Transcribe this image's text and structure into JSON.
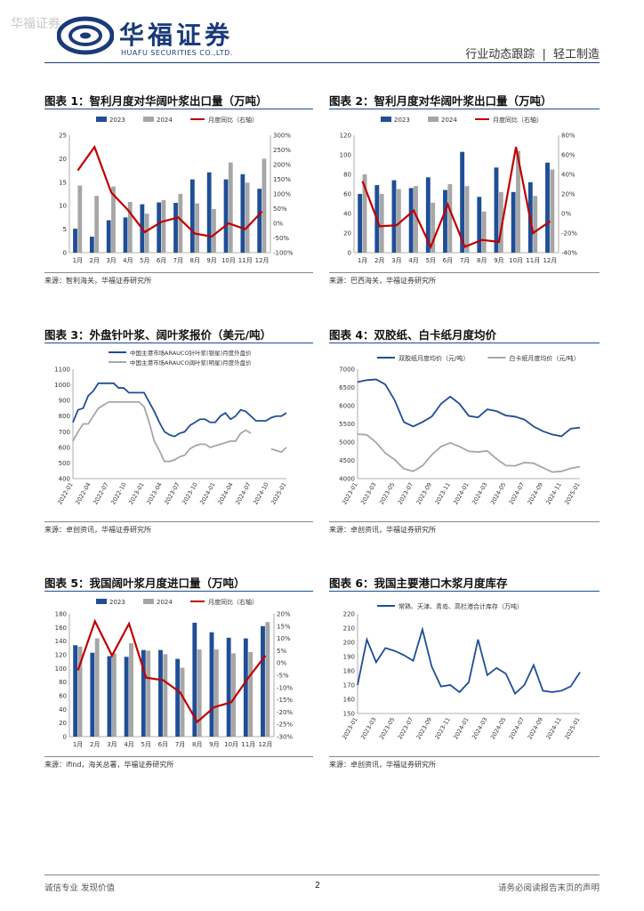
{
  "header": {
    "watermark": "华福证券",
    "logo_cn": "华福证券",
    "logo_en": "HUAFU SECURITIES CO.,LTD.",
    "report_type": "行业动态跟踪",
    "separator": "|",
    "industry": "轻工制造"
  },
  "figures": {
    "f1": {
      "title": "图表 1：智利月度对华阔叶浆出口量（万吨）",
      "source": "来源：智利海关，华福证券研究所"
    },
    "f2": {
      "title": "图表 2：智利月度对华阔叶浆出口量（万吨）",
      "source": "来源：巴西海关，华福证券研究所"
    },
    "f3": {
      "title": "图表 3：外盘针叶浆、阔叶浆报价（美元/吨）",
      "source": "来源：卓创资讯，华福证券研究所"
    },
    "f4": {
      "title": "图表 4：双胶纸、白卡纸月度均价",
      "source": "来源：卓创资讯，华福证券研究所"
    },
    "f5": {
      "title": "图表 5：我国阔叶浆月度进口量（万吨）",
      "source": "来源：ifind，海关总署，华福证券研究所"
    },
    "f6": {
      "title": "图表 6：我国主要港口木浆月度库存",
      "source": "来源：卓创资讯，华福证券研究所"
    }
  },
  "chart_data": [
    {
      "id": "c1",
      "type": "bar+line",
      "categories": [
        "1月",
        "2月",
        "3月",
        "4月",
        "5月",
        "6月",
        "7月",
        "8月",
        "9月",
        "10月",
        "11月",
        "12月"
      ],
      "series": [
        {
          "name": "2023",
          "color": "#1f4e96",
          "values": [
            5.1,
            3.4,
            6.9,
            7.5,
            10.3,
            10.7,
            10.6,
            15.6,
            17.1,
            15.6,
            16.7,
            13.6
          ]
        },
        {
          "name": "2024",
          "color": "#a6a6a6",
          "values": [
            14.3,
            12.1,
            14.1,
            10.8,
            8.3,
            11.2,
            12.5,
            10.5,
            9.3,
            19.2,
            14.9,
            20.0
          ]
        },
        {
          "name": "月度同比（右轴）",
          "color": "#c00000",
          "axis": "right",
          "values": [
            180,
            260,
            105,
            45,
            -30,
            5,
            20,
            -35,
            -45,
            0,
            -20,
            40
          ]
        }
      ],
      "ylim": [
        0,
        25
      ],
      "yticks": [
        0,
        5,
        10,
        15,
        20,
        25
      ],
      "y2lim": [
        -100,
        300
      ],
      "y2ticks": [
        "-100%",
        "-50%",
        "0%",
        "50%",
        "100%",
        "150%",
        "200%",
        "250%",
        "300%"
      ]
    },
    {
      "id": "c2",
      "type": "bar+line",
      "categories": [
        "1月",
        "2月",
        "3月",
        "4月",
        "5月",
        "6月",
        "7月",
        "8月",
        "9月",
        "10月",
        "11月",
        "12月"
      ],
      "series": [
        {
          "name": "2023",
          "color": "#1f4e96",
          "values": [
            60,
            69,
            74,
            66,
            77,
            64,
            103,
            57,
            87,
            62,
            72,
            92
          ]
        },
        {
          "name": "2024",
          "color": "#a6a6a6",
          "values": [
            80,
            60,
            65,
            68,
            51,
            70,
            68,
            42,
            62,
            104,
            58,
            85
          ]
        },
        {
          "name": "月度同比（右轴）",
          "color": "#c00000",
          "axis": "right",
          "values": [
            33,
            -13,
            -12,
            3,
            -34,
            9,
            -34,
            -27,
            -29,
            68,
            -20,
            -8
          ]
        }
      ],
      "ylim": [
        0,
        120
      ],
      "yticks": [
        0,
        20,
        40,
        60,
        80,
        100,
        120
      ],
      "y2lim": [
        -40,
        80
      ],
      "y2ticks": [
        "-40%",
        "-20%",
        "0%",
        "20%",
        "40%",
        "60%",
        "80%"
      ]
    },
    {
      "id": "c3",
      "type": "line",
      "x_labels": [
        "2022-01",
        "2022-04",
        "2022-07",
        "2022-10",
        "2023-01",
        "2023-04",
        "2023-07",
        "2023-10",
        "2024-01",
        "2024-04",
        "2024-07",
        "2024-10",
        "2025-01"
      ],
      "series": [
        {
          "name": "中国主港市场ARAUCO针叶浆(银星)月度外盘价",
          "color": "#1f4e96",
          "values": [
            760,
            840,
            850,
            930,
            960,
            1010,
            1010,
            1010,
            1010,
            980,
            980,
            950,
            950,
            950,
            950,
            890,
            830,
            760,
            700,
            680,
            670,
            690,
            700,
            740,
            760,
            780,
            780,
            760,
            760,
            800,
            820,
            780,
            800,
            840,
            830,
            800,
            770,
            770,
            770,
            790,
            800,
            800,
            820
          ]
        },
        {
          "name": "中国主港市场ARAUCO阔叶浆(明星)月度外盘价",
          "color": "#a6a6a6",
          "values": [
            640,
            700,
            750,
            750,
            800,
            850,
            870,
            890,
            890,
            890,
            890,
            890,
            890,
            890,
            860,
            760,
            640,
            580,
            510,
            510,
            520,
            540,
            550,
            590,
            610,
            620,
            620,
            600,
            610,
            620,
            630,
            640,
            640,
            690,
            710,
            690,
            null,
            null,
            null,
            590,
            580,
            570,
            600
          ]
        }
      ],
      "ylim": [
        400,
        1100
      ],
      "yticks": [
        400,
        500,
        600,
        700,
        800,
        900,
        1000,
        1100
      ]
    },
    {
      "id": "c4",
      "type": "line",
      "x_labels": [
        "2023-01",
        "2023-03",
        "2023-05",
        "2023-07",
        "2023-09",
        "2023-11",
        "2024-01",
        "2024-03",
        "2024-05",
        "2024-07",
        "2024-09",
        "2024-11",
        "2025-01"
      ],
      "series": [
        {
          "name": "双胶纸月度均价（元/吨）",
          "color": "#1f4e96",
          "values": [
            6650,
            6700,
            6720,
            6580,
            6150,
            5550,
            5430,
            5550,
            5700,
            6050,
            6250,
            6050,
            5720,
            5680,
            5900,
            5850,
            5730,
            5700,
            5620,
            5430,
            5300,
            5210,
            5160,
            5370,
            5400
          ]
        },
        {
          "name": "白卡纸月度均价（元/吨）",
          "color": "#a6a6a6",
          "values": [
            5220,
            5200,
            4990,
            4700,
            4520,
            4270,
            4200,
            4350,
            4650,
            4880,
            4980,
            4880,
            4750,
            4730,
            4760,
            4540,
            4360,
            4350,
            4440,
            4420,
            4300,
            4180,
            4200,
            4280,
            4330
          ]
        }
      ],
      "ylim": [
        4000,
        7000
      ],
      "yticks": [
        4000,
        4500,
        5000,
        5500,
        6000,
        6500,
        7000
      ]
    },
    {
      "id": "c5",
      "type": "bar+line",
      "categories": [
        "1月",
        "2月",
        "3月",
        "4月",
        "5月",
        "6月",
        "7月",
        "8月",
        "9月",
        "10月",
        "11月",
        "12月"
      ],
      "series": [
        {
          "name": "2023",
          "color": "#1f4e96",
          "values": [
            134,
            123,
            118,
            117,
            127,
            127,
            114,
            167,
            153,
            145,
            144,
            162
          ]
        },
        {
          "name": "2024",
          "color": "#a6a6a6",
          "values": [
            132,
            144,
            122,
            137,
            126,
            121,
            101,
            128,
            128,
            122,
            124,
            168
          ]
        },
        {
          "name": "月度同比（右轴）",
          "color": "#c00000",
          "axis": "right",
          "values": [
            -3,
            17,
            3,
            16,
            -6,
            -7,
            -12,
            -24,
            -18,
            -16,
            -6,
            3
          ]
        }
      ],
      "ylim": [
        0,
        180
      ],
      "yticks": [
        0,
        20,
        40,
        60,
        80,
        100,
        120,
        140,
        160,
        180
      ],
      "y2lim": [
        -30,
        20
      ],
      "y2ticks": [
        "-30%",
        "-25%",
        "-20%",
        "-15%",
        "-10%",
        "-5%",
        "0%",
        "5%",
        "10%",
        "15%",
        "20%"
      ]
    },
    {
      "id": "c6",
      "type": "line",
      "x_labels": [
        "2023-01",
        "2023-03",
        "2023-05",
        "2023-07",
        "2023-09",
        "2023-11",
        "2024-01",
        "2024-03",
        "2024-05",
        "2024-07",
        "2024-09",
        "2024-11",
        "2025-01"
      ],
      "series": [
        {
          "name": "常熟、天津、青岛、高栏港合计库存（万吨）",
          "color": "#1f4e96",
          "values": [
            170,
            202,
            186,
            196,
            194,
            191,
            187,
            209,
            183,
            169,
            170,
            165,
            172,
            202,
            177,
            182,
            178,
            164,
            170,
            184,
            166,
            165,
            166,
            169,
            179
          ]
        }
      ],
      "ylim": [
        150,
        220
      ],
      "yticks": [
        150,
        160,
        170,
        180,
        190,
        200,
        210,
        220
      ]
    }
  ],
  "footer": {
    "left": "诚信专业  发现价值",
    "page": "2",
    "right": "请务必阅读报告末页的声明"
  }
}
